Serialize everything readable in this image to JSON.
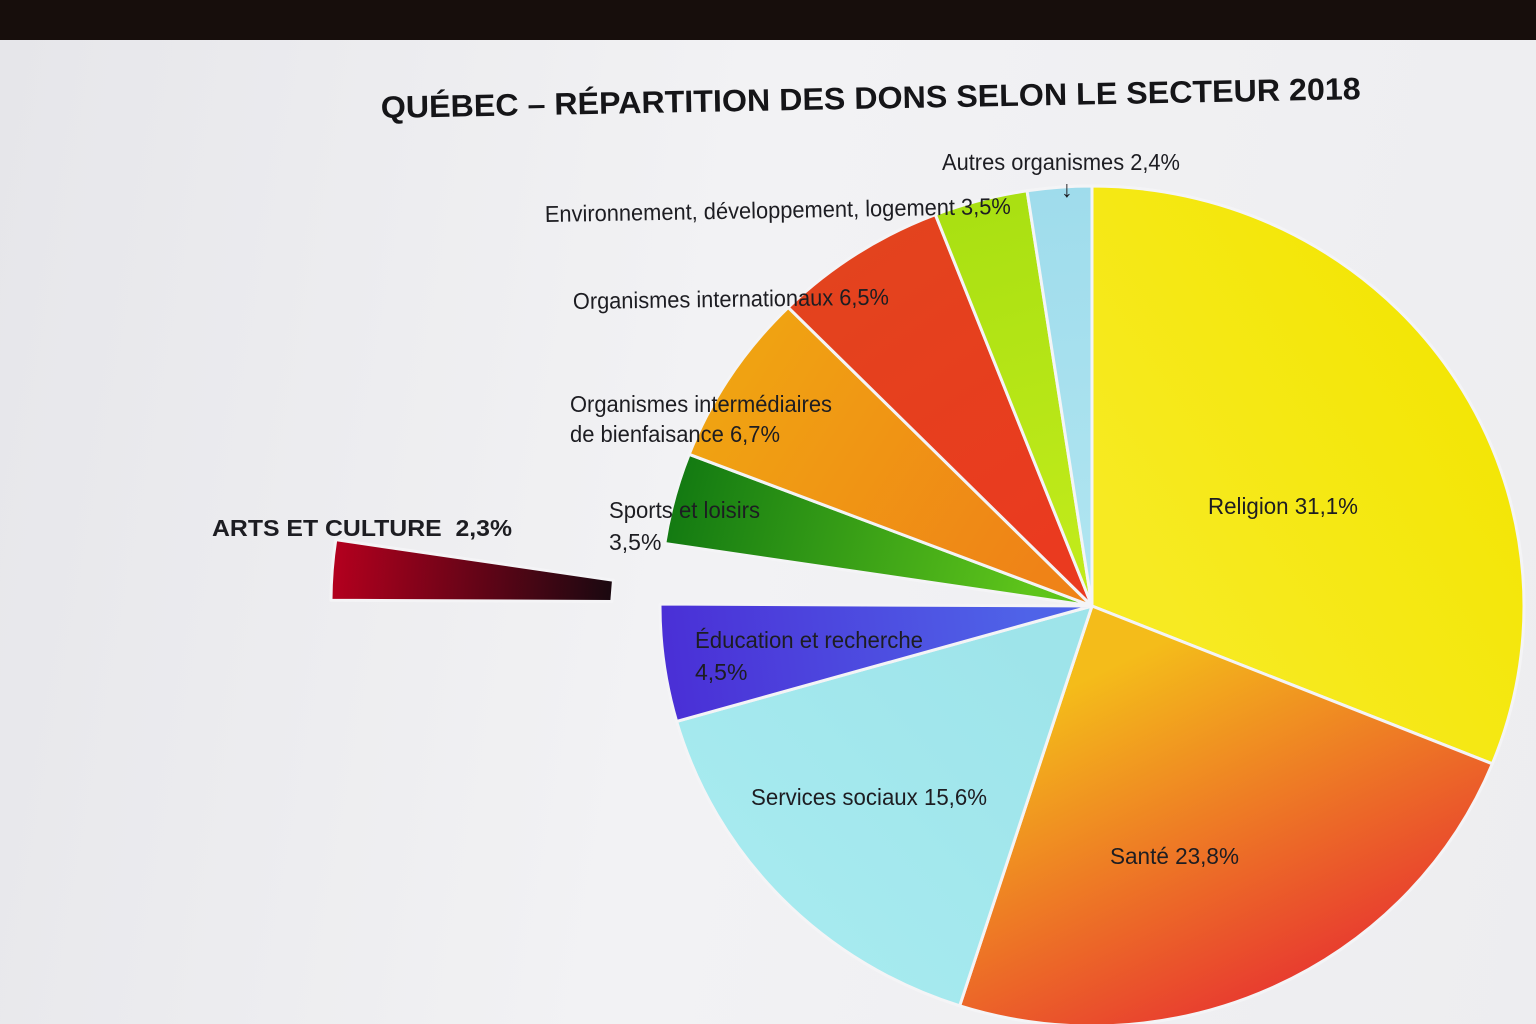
{
  "chart_data": {
    "type": "pie",
    "title": "QUÉBEC – RÉPARTITION DES DONS SELON LE SECTEUR 2018",
    "slices": [
      {
        "label": "Religion 31,1%",
        "value": 31.1,
        "color": "#f3e606",
        "color2": "#f7ea22"
      },
      {
        "label": "Santé 23,8%",
        "value": 23.8,
        "color": "#e83d2f",
        "color2": "#f4bc1a"
      },
      {
        "label": "Services sociaux 15,6%",
        "value": 15.6,
        "color": "#a6eaef",
        "color2": "#9ee4ea"
      },
      {
        "label": "Éducation et recherche",
        "label2": "4,5%",
        "value": 4.5,
        "color": "#4a2fd6",
        "color2": "#4f63e8"
      },
      {
        "label": "ARTS ET CULTURE  2,3%",
        "value": 2.3,
        "color": "#1a0810",
        "color2": "#b4001e",
        "exploded": true
      },
      {
        "label": "Sports et loisirs",
        "label2": "3,5%",
        "value": 3.5,
        "color": "#137a12",
        "color2": "#5ec41b"
      },
      {
        "label": "Organismes intermédiaires",
        "label2": "de bienfaisance 6,7%",
        "value": 6.7,
        "color": "#f0a312",
        "color2": "#ef8317"
      },
      {
        "label": "Organismes internationaux 6,5%",
        "value": 6.5,
        "color": "#e3431e",
        "color2": "#ea3a1f"
      },
      {
        "label": "Environnement, développement, logement 3,5%",
        "value": 3.5,
        "color": "#a9e012",
        "color2": "#c0ea1a"
      },
      {
        "label": "Autres organismes 2,4%",
        "value": 2.4,
        "color": "#9fdcec",
        "color2": "#aee4f0"
      }
    ]
  },
  "annotation_arrow": "↓"
}
